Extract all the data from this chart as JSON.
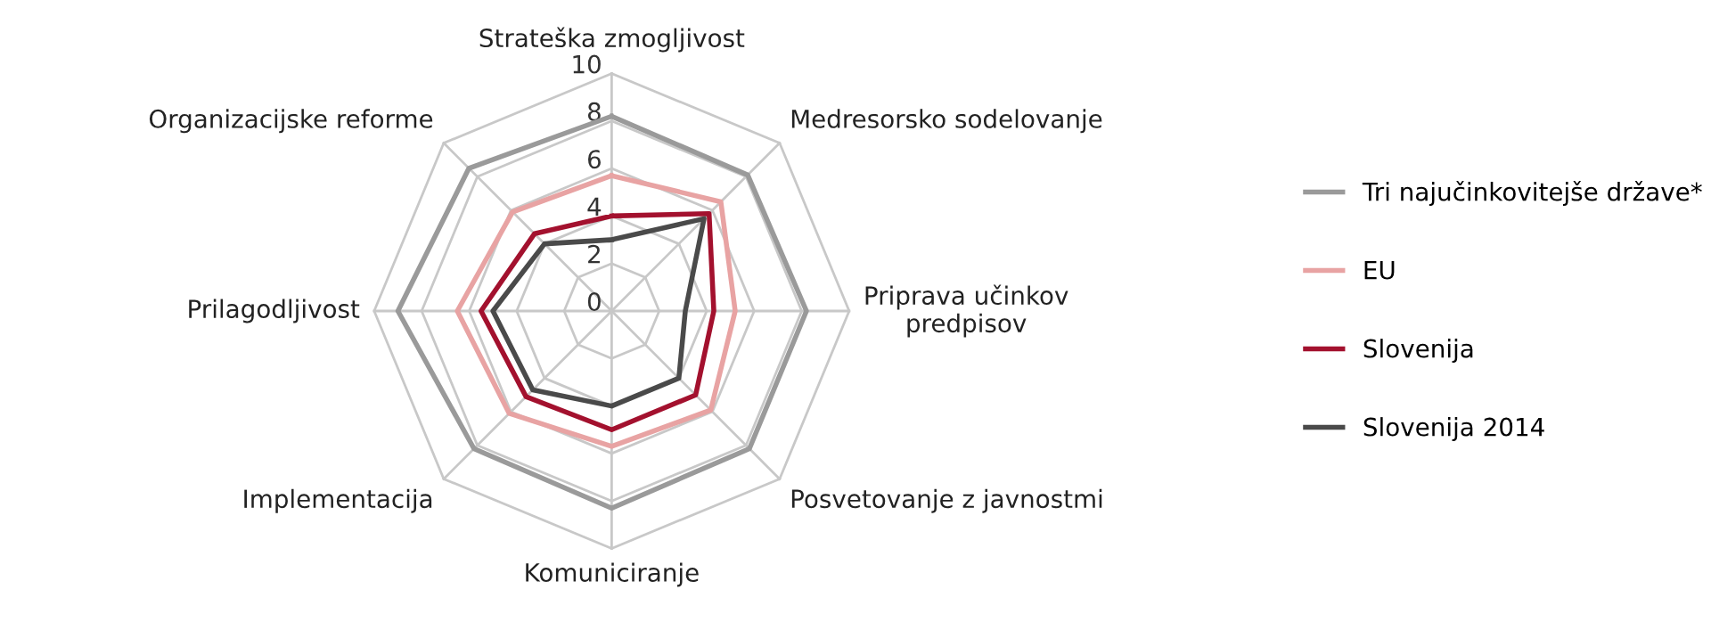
{
  "chart_data": {
    "type": "radar",
    "categories": [
      "Strateška zmogljivost",
      "Medresorsko sodelovanje",
      "Priprava učinkov\npredpisov",
      "Posvetovanje z javnostmi",
      "Komuniciranje",
      "Implementacija",
      "Prilagodljivost",
      "Organizacijske reforme"
    ],
    "ylim": [
      0,
      10
    ],
    "yticks": [
      0,
      2,
      4,
      6,
      8,
      10
    ],
    "grid": true,
    "legend": "right",
    "marker": "none",
    "line_style": "solid",
    "series": [
      {
        "name": "Tri najučinkovitejše države*",
        "color": "#9a9a9a",
        "values": [
          8.2,
          8.1,
          8.2,
          8.2,
          8.3,
          8.2,
          9.0,
          8.5
        ]
      },
      {
        "name": "EU",
        "color": "#e8a3a3",
        "values": [
          5.7,
          6.5,
          5.2,
          5.9,
          5.7,
          6.1,
          6.5,
          5.9
        ]
      },
      {
        "name": "Slovenija",
        "color": "#a3112e",
        "values": [
          4.0,
          5.8,
          4.3,
          5.0,
          5.0,
          5.1,
          5.5,
          4.6
        ]
      },
      {
        "name": "Slovenija 2014",
        "color": "#4a4a4a",
        "values": [
          3.0,
          5.5,
          3.1,
          4.0,
          4.0,
          4.7,
          5.0,
          4.0
        ]
      }
    ]
  }
}
